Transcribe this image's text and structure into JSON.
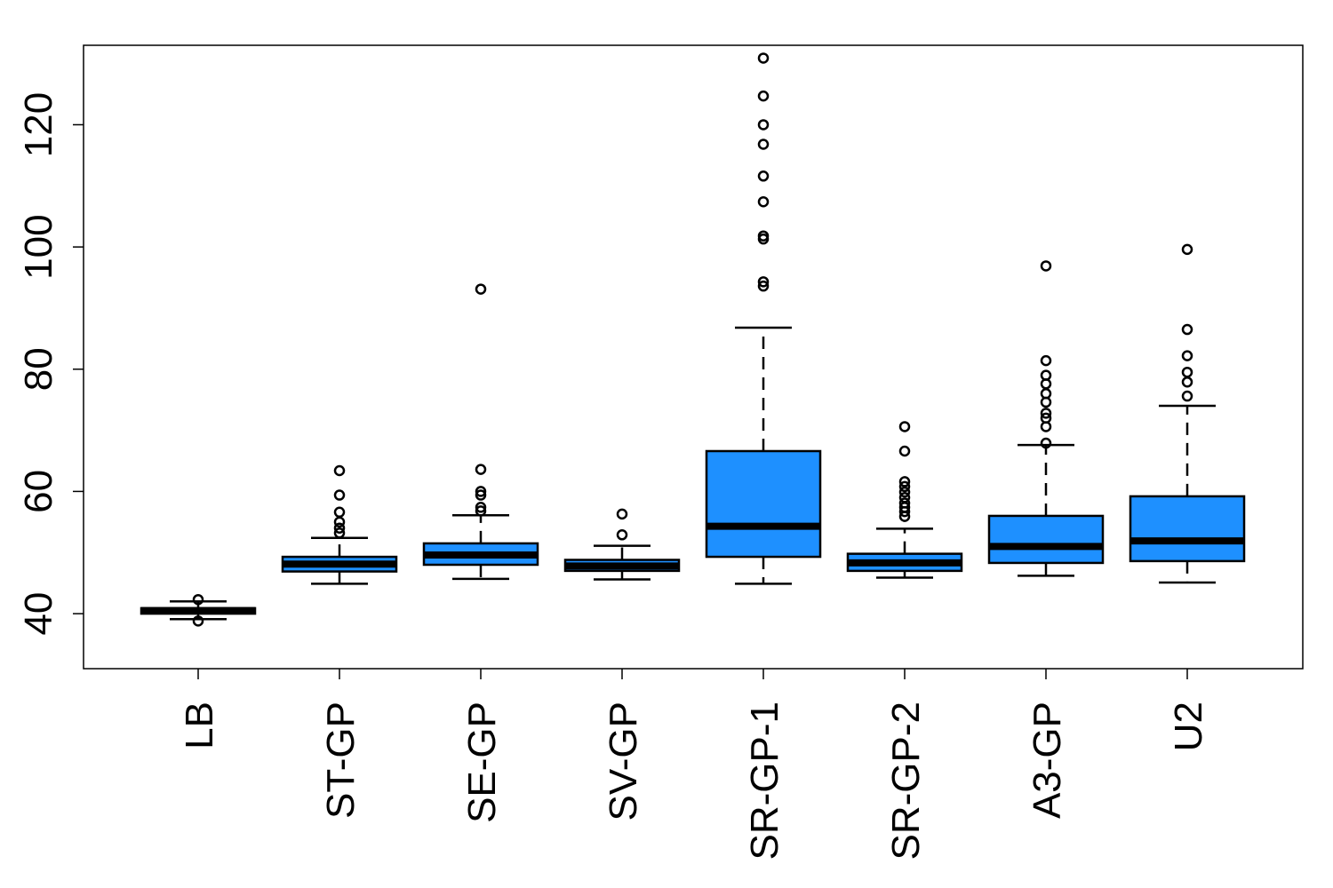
{
  "chart_data": {
    "type": "boxplot",
    "title": "",
    "xlabel": "",
    "ylabel": "",
    "ylim": [
      31,
      133
    ],
    "yticks": [
      40,
      60,
      80,
      100,
      120
    ],
    "box_color": "#1E90FF",
    "categories": [
      "LB",
      "ST-GP",
      "SE-GP",
      "SV-GP",
      "SR-GP-1",
      "SR-GP-2",
      "A3-GP",
      "U2"
    ],
    "boxes": [
      {
        "name": "LB",
        "whisker_low": 39.1,
        "q1": 40.0,
        "median": 40.5,
        "q3": 40.9,
        "whisker_high": 42.0,
        "outliers": [
          38.8,
          42.3
        ]
      },
      {
        "name": "ST-GP",
        "whisker_low": 44.9,
        "q1": 46.9,
        "median": 48.1,
        "q3": 49.3,
        "whisker_high": 52.4,
        "outliers": [
          53.2,
          54.0,
          55.0,
          56.6,
          59.4,
          63.4
        ]
      },
      {
        "name": "SE-GP",
        "whisker_low": 45.7,
        "q1": 48.0,
        "median": 49.6,
        "q3": 51.5,
        "whisker_high": 56.1,
        "outliers": [
          56.8,
          57.4,
          59.4,
          60.0,
          63.6,
          93.1
        ]
      },
      {
        "name": "SV-GP",
        "whisker_low": 45.6,
        "q1": 47.0,
        "median": 47.8,
        "q3": 48.8,
        "whisker_high": 51.1,
        "outliers": [
          52.9,
          56.3
        ]
      },
      {
        "name": "SR-GP-1",
        "whisker_low": 44.9,
        "q1": 49.3,
        "median": 54.3,
        "q3": 66.6,
        "whisker_high": 86.8,
        "outliers": [
          93.6,
          94.3,
          101.3,
          101.8,
          107.4,
          111.6,
          116.8,
          120.0,
          124.7,
          130.9
        ]
      },
      {
        "name": "SR-GP-2",
        "whisker_low": 45.9,
        "q1": 47.0,
        "median": 48.3,
        "q3": 49.8,
        "whisker_high": 53.9,
        "outliers": [
          55.9,
          56.7,
          57.4,
          58.1,
          59.0,
          59.9,
          60.8,
          61.6,
          66.6,
          70.6
        ]
      },
      {
        "name": "A3-GP",
        "whisker_low": 46.2,
        "q1": 48.3,
        "median": 51.0,
        "q3": 56.0,
        "whisker_high": 67.6,
        "outliers": [
          67.9,
          70.6,
          72.0,
          72.8,
          74.6,
          76.0,
          77.6,
          79.0,
          81.4,
          96.9
        ]
      },
      {
        "name": "U2",
        "whisker_low": 45.1,
        "q1": 48.6,
        "median": 51.9,
        "q3": 59.2,
        "whisker_high": 74.0,
        "outliers": [
          75.6,
          77.9,
          79.5,
          82.2,
          86.5,
          99.6
        ]
      }
    ]
  }
}
